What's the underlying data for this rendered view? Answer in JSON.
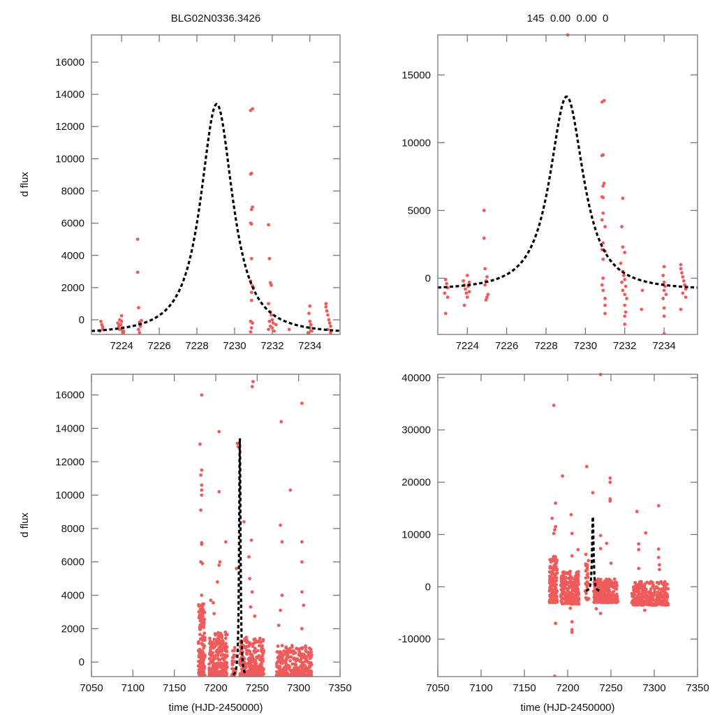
{
  "figure": {
    "title_left": "BLG02N0336.3426",
    "title_right": "145  0.00  0.00  0",
    "point_color": "#ef5b5b",
    "model_color": "#000000"
  },
  "chart_data": [
    {
      "id": "top-left",
      "type": "scatter",
      "title": "BLG02N0336.3426",
      "xlabel": "",
      "ylabel": "d flux",
      "xlim": [
        7222.4,
        7235.6
      ],
      "ylim": [
        -910,
        17690
      ],
      "xticks": [
        7224,
        7226,
        7228,
        7230,
        7232,
        7234
      ],
      "yticks": [
        0,
        2000,
        4000,
        6000,
        8000,
        10000,
        12000,
        14000,
        16000
      ],
      "model": {
        "t0": 7229.05,
        "peak": 13400,
        "base": -900,
        "width": 1.15
      },
      "points": [
        [
          7222.9,
          -100
        ],
        [
          7222.95,
          -300
        ],
        [
          7223.0,
          -450
        ],
        [
          7222.85,
          -700
        ],
        [
          7223.0,
          -600
        ],
        [
          7223.8,
          -200
        ],
        [
          7223.85,
          -400
        ],
        [
          7223.9,
          -600
        ],
        [
          7223.95,
          -300
        ],
        [
          7224.0,
          -100
        ],
        [
          7224.05,
          -500
        ],
        [
          7224.1,
          -700
        ],
        [
          7224.0,
          250
        ],
        [
          7223.9,
          0
        ],
        [
          7224.1,
          -800
        ],
        [
          7224.85,
          5000
        ],
        [
          7224.85,
          2950
        ],
        [
          7224.9,
          750
        ],
        [
          7224.95,
          -150
        ],
        [
          7225.0,
          -400
        ],
        [
          7224.9,
          -600
        ],
        [
          7225.05,
          -50
        ],
        [
          7224.95,
          -800
        ],
        [
          7230.85,
          13000
        ],
        [
          7230.95,
          13100
        ],
        [
          7230.85,
          9050
        ],
        [
          7230.9,
          9100
        ],
        [
          7230.9,
          6850
        ],
        [
          7230.95,
          7000
        ],
        [
          7230.85,
          6000
        ],
        [
          7230.9,
          5950
        ],
        [
          7230.9,
          3800
        ],
        [
          7230.85,
          2400
        ],
        [
          7230.95,
          2100
        ],
        [
          7230.9,
          1700
        ],
        [
          7231.0,
          2000
        ],
        [
          7230.9,
          1200
        ],
        [
          7230.85,
          -100
        ],
        [
          7230.9,
          -500
        ],
        [
          7230.95,
          -200
        ],
        [
          7230.85,
          -750
        ],
        [
          7231.8,
          5900
        ],
        [
          7231.85,
          3800
        ],
        [
          7231.9,
          2300
        ],
        [
          7231.95,
          2150
        ],
        [
          7231.8,
          1000
        ],
        [
          7231.9,
          500
        ],
        [
          7231.95,
          300
        ],
        [
          7232.0,
          0
        ],
        [
          7231.85,
          -100
        ],
        [
          7232.05,
          -200
        ],
        [
          7231.9,
          -400
        ],
        [
          7232.0,
          -500
        ],
        [
          7232.1,
          -700
        ],
        [
          7232.2,
          -300
        ],
        [
          7231.8,
          -600
        ],
        [
          7232.9,
          -600
        ],
        [
          7234.0,
          850
        ],
        [
          7233.95,
          400
        ],
        [
          7234.0,
          -100
        ],
        [
          7234.05,
          -300
        ],
        [
          7234.0,
          -500
        ],
        [
          7234.1,
          -700
        ],
        [
          7233.9,
          -800
        ],
        [
          7234.85,
          1000
        ],
        [
          7234.85,
          800
        ],
        [
          7234.9,
          550
        ],
        [
          7234.95,
          300
        ],
        [
          7235.0,
          0
        ],
        [
          7235.05,
          -200
        ],
        [
          7235.1,
          -400
        ],
        [
          7234.95,
          -600
        ],
        [
          7235.1,
          -800
        ]
      ]
    },
    {
      "id": "top-right",
      "type": "scatter",
      "title": "145  0.00  0.00  0",
      "xlabel": "",
      "ylabel": "",
      "xlim": [
        7222.5,
        7235.7
      ],
      "ylim": [
        -4150,
        17950
      ],
      "xticks": [
        7224,
        7226,
        7228,
        7230,
        7232,
        7234
      ],
      "yticks": [
        0,
        5000,
        10000,
        15000
      ],
      "model": {
        "t0": 7229.05,
        "peak": 13400,
        "base": -900,
        "width": 1.15
      },
      "points": [
        [
          7229.1,
          17950
        ],
        [
          7222.9,
          -100
        ],
        [
          7222.95,
          -400
        ],
        [
          7223.0,
          -700
        ],
        [
          7222.85,
          -1100
        ],
        [
          7223.0,
          -1400
        ],
        [
          7222.9,
          -2600
        ],
        [
          7223.8,
          -200
        ],
        [
          7223.85,
          -500
        ],
        [
          7223.9,
          -800
        ],
        [
          7223.95,
          -1100
        ],
        [
          7224.0,
          200
        ],
        [
          7224.05,
          -600
        ],
        [
          7224.1,
          -1000
        ],
        [
          7224.0,
          -1400
        ],
        [
          7223.85,
          -2000
        ],
        [
          7224.1,
          -300
        ],
        [
          7224.85,
          5000
        ],
        [
          7224.85,
          2950
        ],
        [
          7224.9,
          700
        ],
        [
          7224.95,
          -200
        ],
        [
          7225.0,
          100
        ],
        [
          7224.9,
          -500
        ],
        [
          7225.05,
          -1200
        ],
        [
          7224.95,
          -1600
        ],
        [
          7225.0,
          -1400
        ],
        [
          7230.85,
          13000
        ],
        [
          7230.95,
          13100
        ],
        [
          7230.85,
          9050
        ],
        [
          7230.9,
          9100
        ],
        [
          7230.9,
          6800
        ],
        [
          7230.95,
          7000
        ],
        [
          7230.85,
          6000
        ],
        [
          7230.9,
          5950
        ],
        [
          7230.9,
          4800
        ],
        [
          7230.85,
          4300
        ],
        [
          7231.0,
          3800
        ],
        [
          7230.9,
          2600
        ],
        [
          7230.85,
          2100
        ],
        [
          7231.0,
          2000
        ],
        [
          7230.9,
          1400
        ],
        [
          7230.9,
          0
        ],
        [
          7230.85,
          -500
        ],
        [
          7230.9,
          -900
        ],
        [
          7231.0,
          -1500
        ],
        [
          7231.0,
          -2000
        ],
        [
          7231.0,
          -2600
        ],
        [
          7231.9,
          5900
        ],
        [
          7231.85,
          3800
        ],
        [
          7231.9,
          2300
        ],
        [
          7232.0,
          1900
        ],
        [
          7231.8,
          1100
        ],
        [
          7231.9,
          500
        ],
        [
          7231.95,
          200
        ],
        [
          7232.0,
          -100
        ],
        [
          7231.85,
          -300
        ],
        [
          7232.05,
          -600
        ],
        [
          7231.9,
          -900
        ],
        [
          7232.0,
          -1200
        ],
        [
          7232.1,
          -1500
        ],
        [
          7232.0,
          -2000
        ],
        [
          7232.05,
          -2500
        ],
        [
          7232.0,
          -2800
        ],
        [
          7232.0,
          -3400
        ],
        [
          7232.9,
          -900
        ],
        [
          7232.85,
          -2300
        ],
        [
          7234.0,
          850
        ],
        [
          7233.95,
          200
        ],
        [
          7234.0,
          -300
        ],
        [
          7234.05,
          -600
        ],
        [
          7234.0,
          -900
        ],
        [
          7234.1,
          -1200
        ],
        [
          7233.95,
          -1500
        ],
        [
          7234.0,
          -2200
        ],
        [
          7234.0,
          -2800
        ],
        [
          7234.0,
          -4100
        ],
        [
          7234.85,
          1000
        ],
        [
          7234.85,
          700
        ],
        [
          7234.9,
          400
        ],
        [
          7234.95,
          100
        ],
        [
          7235.0,
          -200
        ],
        [
          7235.05,
          -500
        ],
        [
          7235.1,
          -800
        ],
        [
          7234.95,
          -1100
        ],
        [
          7235.1,
          -1400
        ],
        [
          7234.85,
          -2300
        ]
      ]
    },
    {
      "id": "bottom-left",
      "type": "scatter",
      "title": "",
      "xlabel": "time (HJD-2450000)",
      "ylabel": "d flux",
      "xlim": [
        7050,
        7350
      ],
      "ylim": [
        -870,
        17240
      ],
      "xticks": [
        7050,
        7100,
        7150,
        7200,
        7250,
        7300,
        7350
      ],
      "yticks": [
        0,
        2000,
        4000,
        6000,
        8000,
        10000,
        12000,
        14000,
        16000
      ],
      "model": {
        "t0": 7229.05,
        "peak": 13400,
        "base": -900,
        "width": 1.15
      },
      "outliers": [
        [
          7183,
          16000
        ],
        [
          7181,
          13050
        ],
        [
          7183,
          11500
        ],
        [
          7182,
          11200
        ],
        [
          7183,
          10600
        ],
        [
          7183,
          10300
        ],
        [
          7183,
          10000
        ],
        [
          7182,
          9100
        ],
        [
          7183,
          7150
        ],
        [
          7183,
          7050
        ],
        [
          7182,
          6000
        ],
        [
          7184,
          5900
        ],
        [
          7183,
          4000
        ],
        [
          7204,
          13800
        ],
        [
          7204,
          10200
        ],
        [
          7212,
          7200
        ],
        [
          7205,
          6000
        ],
        [
          7204,
          5800
        ],
        [
          7202,
          4800
        ],
        [
          7197,
          3550
        ],
        [
          7194,
          3700
        ],
        [
          7198,
          2900
        ],
        [
          7226,
          13100
        ],
        [
          7227,
          12900
        ],
        [
          7225,
          5600
        ],
        [
          7234,
          8400
        ],
        [
          7240,
          6300
        ],
        [
          7241,
          5000
        ],
        [
          7245,
          16800
        ],
        [
          7244,
          16500
        ],
        [
          7243,
          7300
        ],
        [
          7244,
          4200
        ],
        [
          7242,
          3300
        ],
        [
          7247,
          2750
        ],
        [
          7279,
          14400
        ],
        [
          7278,
          8200
        ],
        [
          7280,
          7200
        ],
        [
          7280,
          4000
        ],
        [
          7278,
          3100
        ],
        [
          7290,
          10300
        ],
        [
          7304,
          15500
        ],
        [
          7304,
          7200
        ],
        [
          7304,
          6000
        ],
        [
          7304,
          4200
        ],
        [
          7306,
          3400
        ],
        [
          7304,
          2000
        ],
        [
          7276,
          2200
        ]
      ],
      "clusters": [
        {
          "x": [
            7179,
            7187
          ],
          "y": [
            -800,
            3500
          ],
          "n": 160
        },
        {
          "x": [
            7192,
            7214
          ],
          "y": [
            -800,
            1800
          ],
          "n": 240
        },
        {
          "x": [
            7219,
            7224
          ],
          "y": [
            -800,
            1000
          ],
          "n": 30
        },
        {
          "x": [
            7229,
            7258
          ],
          "y": [
            -800,
            1500
          ],
          "n": 260
        },
        {
          "x": [
            7273,
            7316
          ],
          "y": [
            -800,
            1000
          ],
          "n": 280
        }
      ]
    },
    {
      "id": "bottom-right",
      "type": "scatter",
      "title": "",
      "xlabel": "time (HJD-2450000)",
      "ylabel": "",
      "xlim": [
        7050,
        7350
      ],
      "ylim": [
        -17180,
        40650
      ],
      "xticks": [
        7050,
        7100,
        7150,
        7200,
        7250,
        7300,
        7350
      ],
      "yticks": [
        -10000,
        0,
        10000,
        20000,
        30000,
        40000
      ],
      "model": {
        "t0": 7229.05,
        "peak": 13400,
        "base": -900,
        "width": 1.15
      },
      "outliers": [
        [
          7238,
          40600
        ],
        [
          7184,
          34700
        ],
        [
          7194,
          21200
        ],
        [
          7222,
          23000
        ],
        [
          7249,
          20800
        ],
        [
          7249,
          20000
        ],
        [
          7229,
          18000
        ],
        [
          7249,
          16800
        ],
        [
          7249,
          16400
        ],
        [
          7186,
          16000
        ],
        [
          7305,
          15500
        ],
        [
          7280,
          14400
        ],
        [
          7204,
          13800
        ],
        [
          7182,
          13100
        ],
        [
          7186,
          11500
        ],
        [
          7185,
          10900
        ],
        [
          7184,
          10200
        ],
        [
          7205,
          10200
        ],
        [
          7290,
          10300
        ],
        [
          7238,
          9800
        ],
        [
          7245,
          8300
        ],
        [
          7282,
          8200
        ],
        [
          7282,
          7100
        ],
        [
          7305,
          7200
        ],
        [
          7212,
          7100
        ],
        [
          7238,
          7300
        ],
        [
          7305,
          5600
        ],
        [
          7306,
          4200
        ],
        [
          7250,
          4500
        ],
        [
          7306,
          3300
        ],
        [
          7282,
          3500
        ],
        [
          7205,
          5900
        ],
        [
          7221,
          6200
        ],
        [
          7224,
          5000
        ],
        [
          7186,
          -7000
        ],
        [
          7205,
          -6700
        ],
        [
          7205,
          -8200
        ],
        [
          7205,
          -8700
        ],
        [
          7185,
          -17100
        ],
        [
          7238,
          -5100
        ],
        [
          7233,
          -4200
        ],
        [
          7289,
          -4500
        ],
        [
          7203,
          -4100
        ]
      ],
      "clusters": [
        {
          "x": [
            7179,
            7188
          ],
          "y": [
            -3000,
            5800
          ],
          "n": 170
        },
        {
          "x": [
            7192,
            7213
          ],
          "y": [
            -3300,
            3000
          ],
          "n": 230
        },
        {
          "x": [
            7220,
            7224
          ],
          "y": [
            -2500,
            4500
          ],
          "n": 30
        },
        {
          "x": [
            7230,
            7258
          ],
          "y": [
            -3000,
            1500
          ],
          "n": 250
        },
        {
          "x": [
            7274,
            7316
          ],
          "y": [
            -3500,
            1000
          ],
          "n": 290
        }
      ]
    }
  ]
}
